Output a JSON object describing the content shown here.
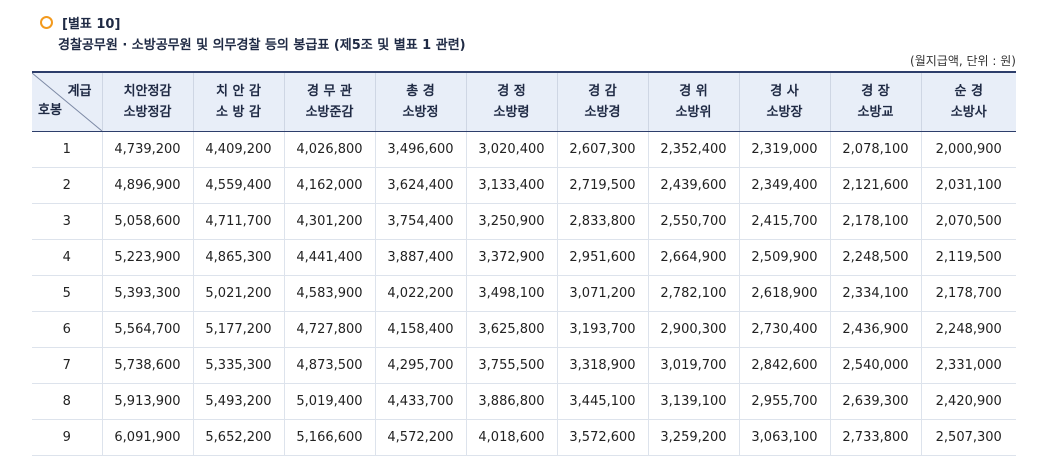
{
  "appendix": "[별표 10]",
  "subtitle": "경찰공무원 · 소방공무원 및 의무경찰 등의 봉급표 (제5조 및 별표 1 관련)",
  "unit_note": "(월지급액, 단위 : 원)",
  "header": {
    "corner_top": "계급",
    "corner_bottom": "호봉",
    "ranks": [
      {
        "l1": "치안정감",
        "l2": "소방정감"
      },
      {
        "l1": "치 안 감",
        "l2": "소 방 감"
      },
      {
        "l1": "경 무 관",
        "l2": "소방준감"
      },
      {
        "l1": "총 경",
        "l2": "소방정"
      },
      {
        "l1": "경 정",
        "l2": "소방령"
      },
      {
        "l1": "경 감",
        "l2": "소방경"
      },
      {
        "l1": "경 위",
        "l2": "소방위"
      },
      {
        "l1": "경 사",
        "l2": "소방장"
      },
      {
        "l1": "경 장",
        "l2": "소방교"
      },
      {
        "l1": "순 경",
        "l2": "소방사"
      }
    ]
  },
  "rows": [
    [
      "1",
      "4,739,200",
      "4,409,200",
      "4,026,800",
      "3,496,600",
      "3,020,400",
      "2,607,300",
      "2,352,400",
      "2,319,000",
      "2,078,100",
      "2,000,900"
    ],
    [
      "2",
      "4,896,900",
      "4,559,400",
      "4,162,000",
      "3,624,400",
      "3,133,400",
      "2,719,500",
      "2,439,600",
      "2,349,400",
      "2,121,600",
      "2,031,100"
    ],
    [
      "3",
      "5,058,600",
      "4,711,700",
      "4,301,200",
      "3,754,400",
      "3,250,900",
      "2,833,800",
      "2,550,700",
      "2,415,700",
      "2,178,100",
      "2,070,500"
    ],
    [
      "4",
      "5,223,900",
      "4,865,300",
      "4,441,400",
      "3,887,400",
      "3,372,900",
      "2,951,600",
      "2,664,900",
      "2,509,900",
      "2,248,500",
      "2,119,500"
    ],
    [
      "5",
      "5,393,300",
      "5,021,200",
      "4,583,900",
      "4,022,200",
      "3,498,100",
      "3,071,200",
      "2,782,100",
      "2,618,900",
      "2,334,100",
      "2,178,700"
    ],
    [
      "6",
      "5,564,700",
      "5,177,200",
      "4,727,800",
      "4,158,400",
      "3,625,800",
      "3,193,700",
      "2,900,300",
      "2,730,400",
      "2,436,900",
      "2,248,900"
    ],
    [
      "7",
      "5,738,600",
      "5,335,300",
      "4,873,500",
      "4,295,700",
      "3,755,500",
      "3,318,900",
      "3,019,700",
      "2,842,600",
      "2,540,000",
      "2,331,000"
    ],
    [
      "8",
      "5,913,900",
      "5,493,200",
      "5,019,400",
      "4,433,700",
      "3,886,800",
      "3,445,100",
      "3,139,100",
      "2,955,700",
      "2,639,300",
      "2,420,900"
    ],
    [
      "9",
      "6,091,900",
      "5,652,200",
      "5,166,600",
      "4,572,200",
      "4,018,600",
      "3,572,600",
      "3,259,200",
      "3,063,100",
      "2,733,800",
      "2,507,300"
    ]
  ]
}
